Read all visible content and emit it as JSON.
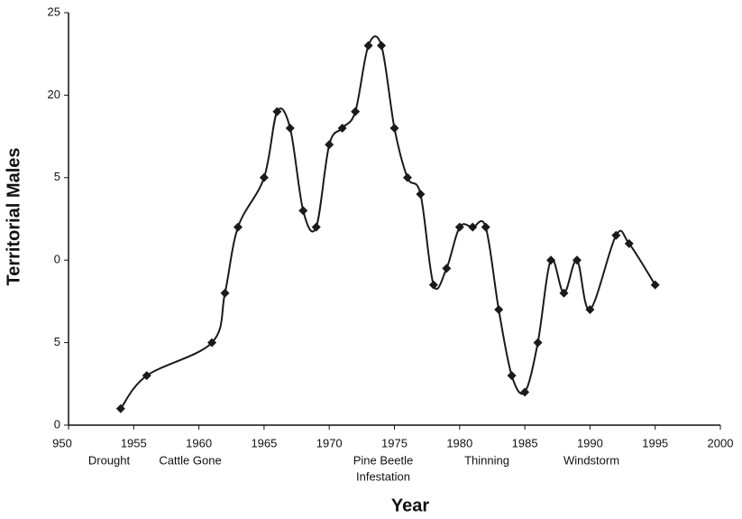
{
  "chart_data": {
    "type": "line",
    "x_label": "Year",
    "y_label": "Territorial Males",
    "x": [
      1954,
      1956,
      1961,
      1962,
      1963,
      1965,
      1966,
      1967,
      1968,
      1969,
      1970,
      1971,
      1972,
      1973,
      1974,
      1975,
      1976,
      1977,
      1978,
      1979,
      1980,
      1981,
      1982,
      1983,
      1984,
      1985,
      1986,
      1987,
      1988,
      1989,
      1990,
      1992,
      1993,
      1995
    ],
    "values": [
      1,
      3,
      5,
      8,
      12,
      15,
      19,
      18,
      13,
      12,
      17,
      18,
      19,
      23,
      23,
      18,
      15,
      14,
      8.5,
      9.5,
      12,
      12,
      12,
      7,
      3,
      2,
      5,
      10,
      8,
      10,
      7,
      11.5,
      11,
      8.5
    ],
    "color": "#1a1a1a",
    "xlim": [
      1950,
      2000
    ],
    "xticks": [
      {
        "value": 1950,
        "label": "950"
      },
      1955,
      1960,
      1965,
      1970,
      1975,
      1980,
      1985,
      1990,
      1995,
      2000
    ],
    "ylim": [
      0,
      25
    ],
    "yticks": [
      0,
      {
        "value": 5,
        "label": "5"
      },
      {
        "value": 10,
        "label": "0"
      },
      {
        "value": 15,
        "label": "5"
      },
      20,
      25
    ],
    "annotations": [
      [
        "Drought"
      ],
      [
        "Cattle Gone"
      ],
      [
        "Pine Beetle",
        "Infestation"
      ],
      [
        "Thinning"
      ],
      [
        "Windstorm"
      ]
    ]
  }
}
